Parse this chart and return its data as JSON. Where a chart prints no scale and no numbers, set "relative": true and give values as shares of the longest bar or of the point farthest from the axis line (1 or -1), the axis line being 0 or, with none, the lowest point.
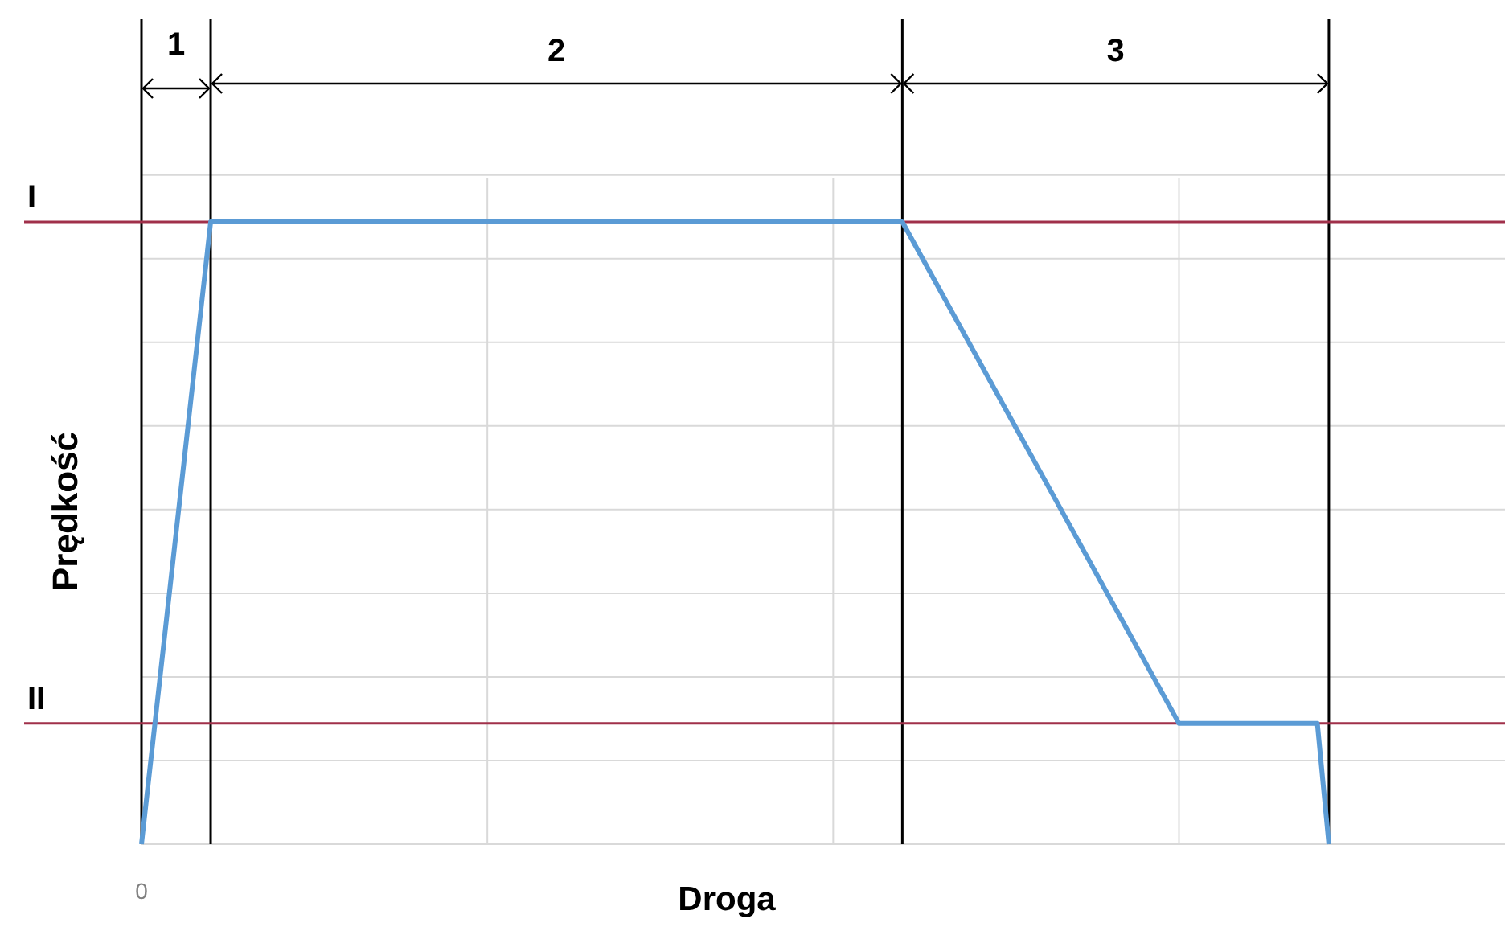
{
  "chart_data": {
    "type": "line",
    "relative": true,
    "xlabel": "Droga",
    "ylabel": "Prędkość",
    "annotations": [
      "0",
      "1",
      "2",
      "3"
    ],
    "categories": [
      null,
      null,
      null,
      null,
      null,
      null,
      null,
      null,
      null,
      null,
      null,
      null,
      null,
      null,
      null,
      null,
      null,
      null,
      null,
      null,
      null,
      null,
      null,
      null,
      null,
      null,
      null,
      null,
      null,
      null,
      null,
      null,
      null,
      null,
      null,
      null,
      null,
      null,
      null,
      null,
      null,
      null,
      null,
      null,
      null,
      null,
      null,
      null,
      null,
      null,
      null,
      null,
      null,
      null,
      null,
      null,
      null,
      null,
      null,
      null,
      null,
      null,
      null,
      null,
      null,
      null,
      null,
      null,
      null,
      null,
      null,
      null,
      null,
      null,
      null,
      null,
      null,
      null,
      null,
      null,
      null,
      null,
      null,
      null,
      null,
      null,
      null,
      null,
      null,
      null,
      null,
      null,
      null,
      null,
      null,
      null,
      null,
      null,
      null,
      null,
      null,
      null,
      null,
      null,
      null,
      null,
      null,
      null,
      null,
      null,
      null,
      null,
      null,
      null,
      null,
      null,
      null,
      null,
      null
    ],
    "series": [
      {
        "color": "#5b9bd5",
        "values": [
          0,
          null,
          null,
          null,
          null,
          null,
          1,
          null,
          null,
          null,
          null,
          null,
          null,
          null,
          null,
          null,
          null,
          null,
          null,
          null,
          null,
          null,
          null,
          null,
          null,
          null,
          null,
          null,
          null,
          null,
          null,
          null,
          null,
          null,
          null,
          null,
          null,
          null,
          null,
          null,
          null,
          null,
          null,
          null,
          null,
          null,
          null,
          null,
          null,
          null,
          null,
          null,
          null,
          null,
          null,
          null,
          null,
          null,
          null,
          null,
          null,
          null,
          null,
          null,
          null,
          null,
          1,
          null,
          null,
          null,
          null,
          null,
          null,
          null,
          null,
          null,
          null,
          null,
          null,
          null,
          null,
          null,
          null,
          null,
          null,
          null,
          null,
          null,
          null,
          null,
          0.194,
          null,
          null,
          null,
          null,
          null,
          null,
          null,
          null,
          null,
          null,
          null,
          0.194,
          0,
          null,
          null,
          null,
          null,
          null,
          null,
          null,
          null,
          null,
          null,
          null,
          null,
          null,
          null,
          null
        ]
      }
    ],
    "grid": true,
    "marker": "none",
    "line_style": "solid",
    "ref_lines": [
      {
        "axis": "y",
        "value": 1,
        "label": "I",
        "color": "#a0304a"
      },
      {
        "axis": "y",
        "value": 0.194,
        "label": "II",
        "color": "#a0304a"
      }
    ]
  }
}
